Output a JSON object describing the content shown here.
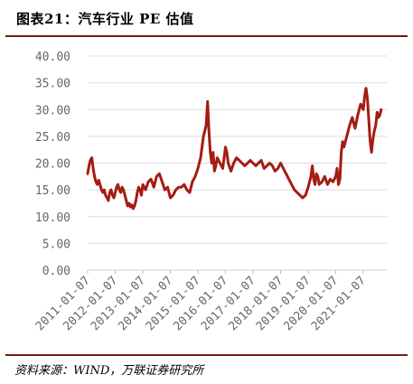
{
  "header": {
    "title": "图表21：汽车行业 PE 估值"
  },
  "footer": {
    "source": "资料来源：WIND，万联证券研究所"
  },
  "chart_data": {
    "type": "line",
    "title": "",
    "xlabel": "",
    "ylabel": "",
    "ylim": [
      0,
      40
    ],
    "yticks": [
      "0.00",
      "5.00",
      "10.00",
      "15.00",
      "20.00",
      "25.00",
      "30.00",
      "35.00",
      "40.00"
    ],
    "xticks": [
      "2011-01-07",
      "2012-01-07",
      "2013-01-07",
      "2014-01-07",
      "2015-01-07",
      "2016-01-07",
      "2017-01-07",
      "2018-01-07",
      "2019-01-07",
      "2020-01-07",
      "2021-01-07"
    ],
    "grid": "horizontal",
    "line_color": "#a41c12",
    "series": [
      {
        "x": [
          2011.0,
          2011.05,
          2011.1,
          2011.15,
          2011.2,
          2011.25,
          2011.3,
          2011.35,
          2011.4,
          2011.45,
          2011.5,
          2011.55,
          2011.6,
          2011.65,
          2011.7,
          2011.75,
          2011.8,
          2011.85,
          2011.9,
          2011.95,
          2012.0,
          2012.05,
          2012.1,
          2012.15,
          2012.2,
          2012.25,
          2012.3,
          2012.35,
          2012.4,
          2012.45,
          2012.5,
          2012.55,
          2012.6,
          2012.65,
          2012.7,
          2012.75,
          2012.8,
          2012.85,
          2012.9,
          2012.95,
          2013.0,
          2013.1,
          2013.2,
          2013.3,
          2013.4,
          2013.5,
          2013.6,
          2013.7,
          2013.8,
          2013.9,
          2014.0,
          2014.1,
          2014.2,
          2014.3,
          2014.4,
          2014.5,
          2014.6,
          2014.7,
          2014.8,
          2014.9,
          2015.0,
          2015.1,
          2015.2,
          2015.3,
          2015.35,
          2015.4,
          2015.45,
          2015.5,
          2015.55,
          2015.6,
          2015.65,
          2015.7,
          2015.8,
          2015.9,
          2016.0,
          2016.05,
          2016.1,
          2016.2,
          2016.3,
          2016.4,
          2016.5,
          2016.6,
          2016.7,
          2016.8,
          2016.9,
          2017.0,
          2017.1,
          2017.2,
          2017.3,
          2017.4,
          2017.5,
          2017.6,
          2017.7,
          2017.8,
          2017.9,
          2018.0,
          2018.1,
          2018.2,
          2018.3,
          2018.4,
          2018.5,
          2018.6,
          2018.7,
          2018.8,
          2018.9,
          2019.0,
          2019.1,
          2019.15,
          2019.2,
          2019.25,
          2019.3,
          2019.35,
          2019.4,
          2019.5,
          2019.6,
          2019.7,
          2019.8,
          2019.9,
          2020.0,
          2020.05,
          2020.1,
          2020.15,
          2020.2,
          2020.25,
          2020.3,
          2020.4,
          2020.5,
          2020.6,
          2020.7,
          2020.8,
          2020.9,
          2021.0,
          2021.05,
          2021.1,
          2021.15,
          2021.2,
          2021.25,
          2021.3,
          2021.35,
          2021.4,
          2021.45,
          2021.5,
          2021.55,
          2021.6,
          2021.65
        ],
        "values": [
          18.0,
          19.5,
          20.5,
          21.0,
          19.0,
          17.5,
          16.5,
          16.0,
          16.8,
          16.0,
          15.0,
          14.5,
          15.0,
          14.0,
          13.5,
          13.0,
          14.5,
          15.0,
          14.0,
          13.5,
          14.5,
          15.5,
          16.0,
          15.0,
          14.5,
          15.5,
          15.0,
          14.0,
          13.0,
          12.0,
          12.5,
          11.8,
          12.2,
          11.5,
          12.0,
          13.0,
          14.5,
          15.5,
          15.0,
          14.0,
          16.0,
          15.0,
          16.5,
          17.0,
          15.5,
          17.5,
          18.0,
          16.5,
          15.0,
          15.5,
          13.5,
          14.0,
          15.0,
          15.5,
          15.5,
          16.0,
          15.0,
          14.5,
          16.5,
          17.5,
          19.0,
          21.0,
          25.0,
          27.0,
          31.5,
          26.0,
          22.0,
          20.0,
          22.0,
          18.5,
          19.5,
          21.0,
          20.0,
          19.0,
          23.0,
          22.0,
          20.0,
          18.5,
          20.0,
          21.0,
          20.5,
          20.0,
          19.5,
          20.0,
          20.5,
          20.0,
          19.5,
          20.0,
          20.5,
          19.0,
          19.5,
          20.0,
          19.5,
          18.5,
          19.0,
          20.0,
          19.0,
          18.0,
          17.0,
          16.0,
          15.0,
          14.5,
          14.0,
          13.5,
          14.0,
          15.5,
          17.5,
          19.5,
          17.0,
          16.0,
          18.0,
          17.5,
          16.0,
          16.5,
          17.5,
          16.0,
          17.0,
          16.5,
          17.5,
          19.0,
          16.0,
          17.0,
          22.0,
          24.0,
          23.0,
          25.0,
          27.0,
          28.5,
          26.5,
          29.0,
          31.0,
          30.0,
          32.5,
          34.0,
          32.0,
          28.0,
          24.0,
          22.0,
          24.5,
          26.0,
          27.0,
          29.5,
          28.5,
          29.0,
          30.0
        ]
      }
    ]
  }
}
